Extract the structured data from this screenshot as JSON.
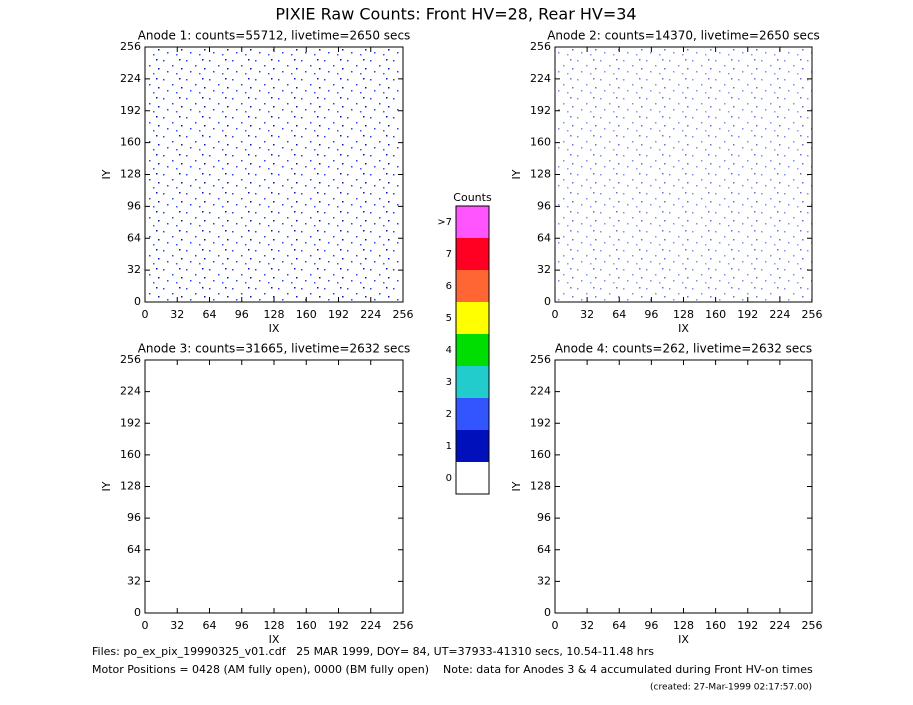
{
  "title": "PIXIE Raw Counts:  Front HV=28, Rear HV=34",
  "chart_data": [
    {
      "type": "heatmap",
      "title": "Anode 1: counts=55712, livetime=2650 secs",
      "xlabel": "IX",
      "ylabel": "IY",
      "xlim": [
        0,
        256
      ],
      "ylim": [
        0,
        256
      ],
      "xticks": [
        0,
        32,
        64,
        96,
        128,
        160,
        192,
        224,
        256
      ],
      "yticks": [
        0,
        32,
        64,
        96,
        128,
        160,
        192,
        224,
        256
      ]
    },
    {
      "type": "heatmap",
      "title": "Anode 2: counts=14370, livetime=2650 secs",
      "xlabel": "IX",
      "ylabel": "IY",
      "xlim": [
        0,
        256
      ],
      "ylim": [
        0,
        256
      ],
      "xticks": [
        0,
        32,
        64,
        96,
        128,
        160,
        192,
        224,
        256
      ],
      "yticks": [
        0,
        32,
        64,
        96,
        128,
        160,
        192,
        224,
        256
      ]
    },
    {
      "type": "heatmap",
      "title": "Anode 3: counts=31665, livetime=2632 secs",
      "xlabel": "IX",
      "ylabel": "IY",
      "xlim": [
        0,
        256
      ],
      "ylim": [
        0,
        256
      ],
      "xticks": [
        0,
        32,
        64,
        96,
        128,
        160,
        192,
        224,
        256
      ],
      "yticks": [
        0,
        32,
        64,
        96,
        128,
        160,
        192,
        224,
        256
      ]
    },
    {
      "type": "heatmap",
      "title": "Anode 4: counts=262, livetime=2632 secs",
      "xlabel": "IX",
      "ylabel": "IY",
      "xlim": [
        0,
        256
      ],
      "ylim": [
        0,
        256
      ],
      "xticks": [
        0,
        32,
        64,
        96,
        128,
        160,
        192,
        224,
        256
      ],
      "yticks": [
        0,
        32,
        64,
        96,
        128,
        160,
        192,
        224,
        256
      ]
    }
  ],
  "colorbar": {
    "title": "Counts",
    "ticks": [
      0,
      1,
      2,
      3,
      4,
      5,
      6,
      7,
      {
        "value": 8,
        "label": ">7"
      }
    ],
    "colors": [
      "#ffffff",
      "#0011bb",
      "#3355ff",
      "#22cccc",
      "#00dd00",
      "#ffff00",
      "#ff6633",
      "#ff0022",
      "#ff55ff"
    ]
  },
  "footer": {
    "files": "Files: po_ex_pix_19990325_v01.cdf   25 MAR 1999, DOY= 84, UT=37933-41310 secs, 10.54-11.48 hrs",
    "motor": "Motor Positions = 0428 (AM fully open), 0000 (BM fully open)    Note: data for Anodes 3 & 4 accumulated during Front HV-on times",
    "created": "(created: 27-Mar-1999 02:17:57.00)"
  }
}
